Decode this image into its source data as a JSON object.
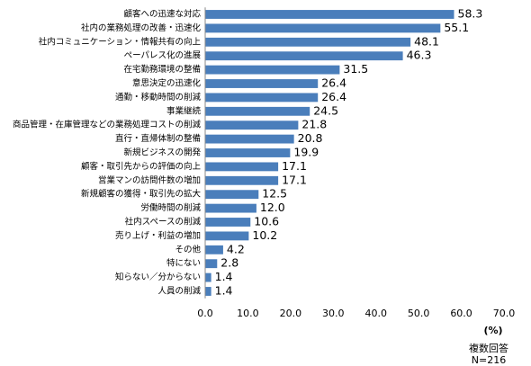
{
  "chart_data": {
    "type": "hbar",
    "categories": [
      "顧客への迅速な対応",
      "社内の業務処理の改善・迅速化",
      "社内コミュニケーション・情報共有の向上",
      "ペーパレス化の進展",
      "在宅勤務環境の整備",
      "意思決定の迅速化",
      "通勤・移動時間の削減",
      "事業継続",
      "商品管理・在庫管理などの業務処理コストの削減",
      "直行・直帰体制の整備",
      "新規ビジネスの開発",
      "顧客・取引先からの評価の向上",
      "営業マンの訪問件数の増加",
      "新規顧客の獲得・取引先の拡大",
      "労働時間の削減",
      "社内スペースの削減",
      "売り上げ・利益の増加",
      "その他",
      "特にない",
      "知らない／分からない",
      "人員の削減"
    ],
    "values": [
      58.3,
      55.1,
      48.1,
      46.3,
      31.5,
      26.4,
      26.4,
      24.5,
      21.8,
      20.8,
      19.9,
      17.1,
      17.1,
      12.5,
      12.0,
      10.6,
      10.2,
      4.2,
      2.8,
      1.4,
      1.4
    ],
    "value_labels": [
      "58.3",
      "55.1",
      "48.1",
      "46.3",
      "31.5",
      "26.4",
      "26.4",
      "24.5",
      "21.8",
      "20.8",
      "19.9",
      "17.1",
      "17.1",
      "12.5",
      "12.0",
      "10.6",
      "10.2",
      "4.2",
      "2.8",
      "1.4",
      "1.4"
    ],
    "color": "#4a7ebb",
    "xlim": [
      0,
      70
    ],
    "xticks": [
      {
        "value": 0,
        "label": "0.0"
      },
      {
        "value": 10,
        "label": "10.0"
      },
      {
        "value": 20,
        "label": "20.0"
      },
      {
        "value": 30,
        "label": "30.0"
      },
      {
        "value": 40,
        "label": "40.0"
      },
      {
        "value": 50,
        "label": "50.0"
      },
      {
        "value": 60,
        "label": "60.0"
      },
      {
        "value": 70,
        "label": "70.0"
      }
    ],
    "xlabel": "(%)",
    "notes": [
      "複数回答",
      "N=216"
    ],
    "grid": false
  }
}
